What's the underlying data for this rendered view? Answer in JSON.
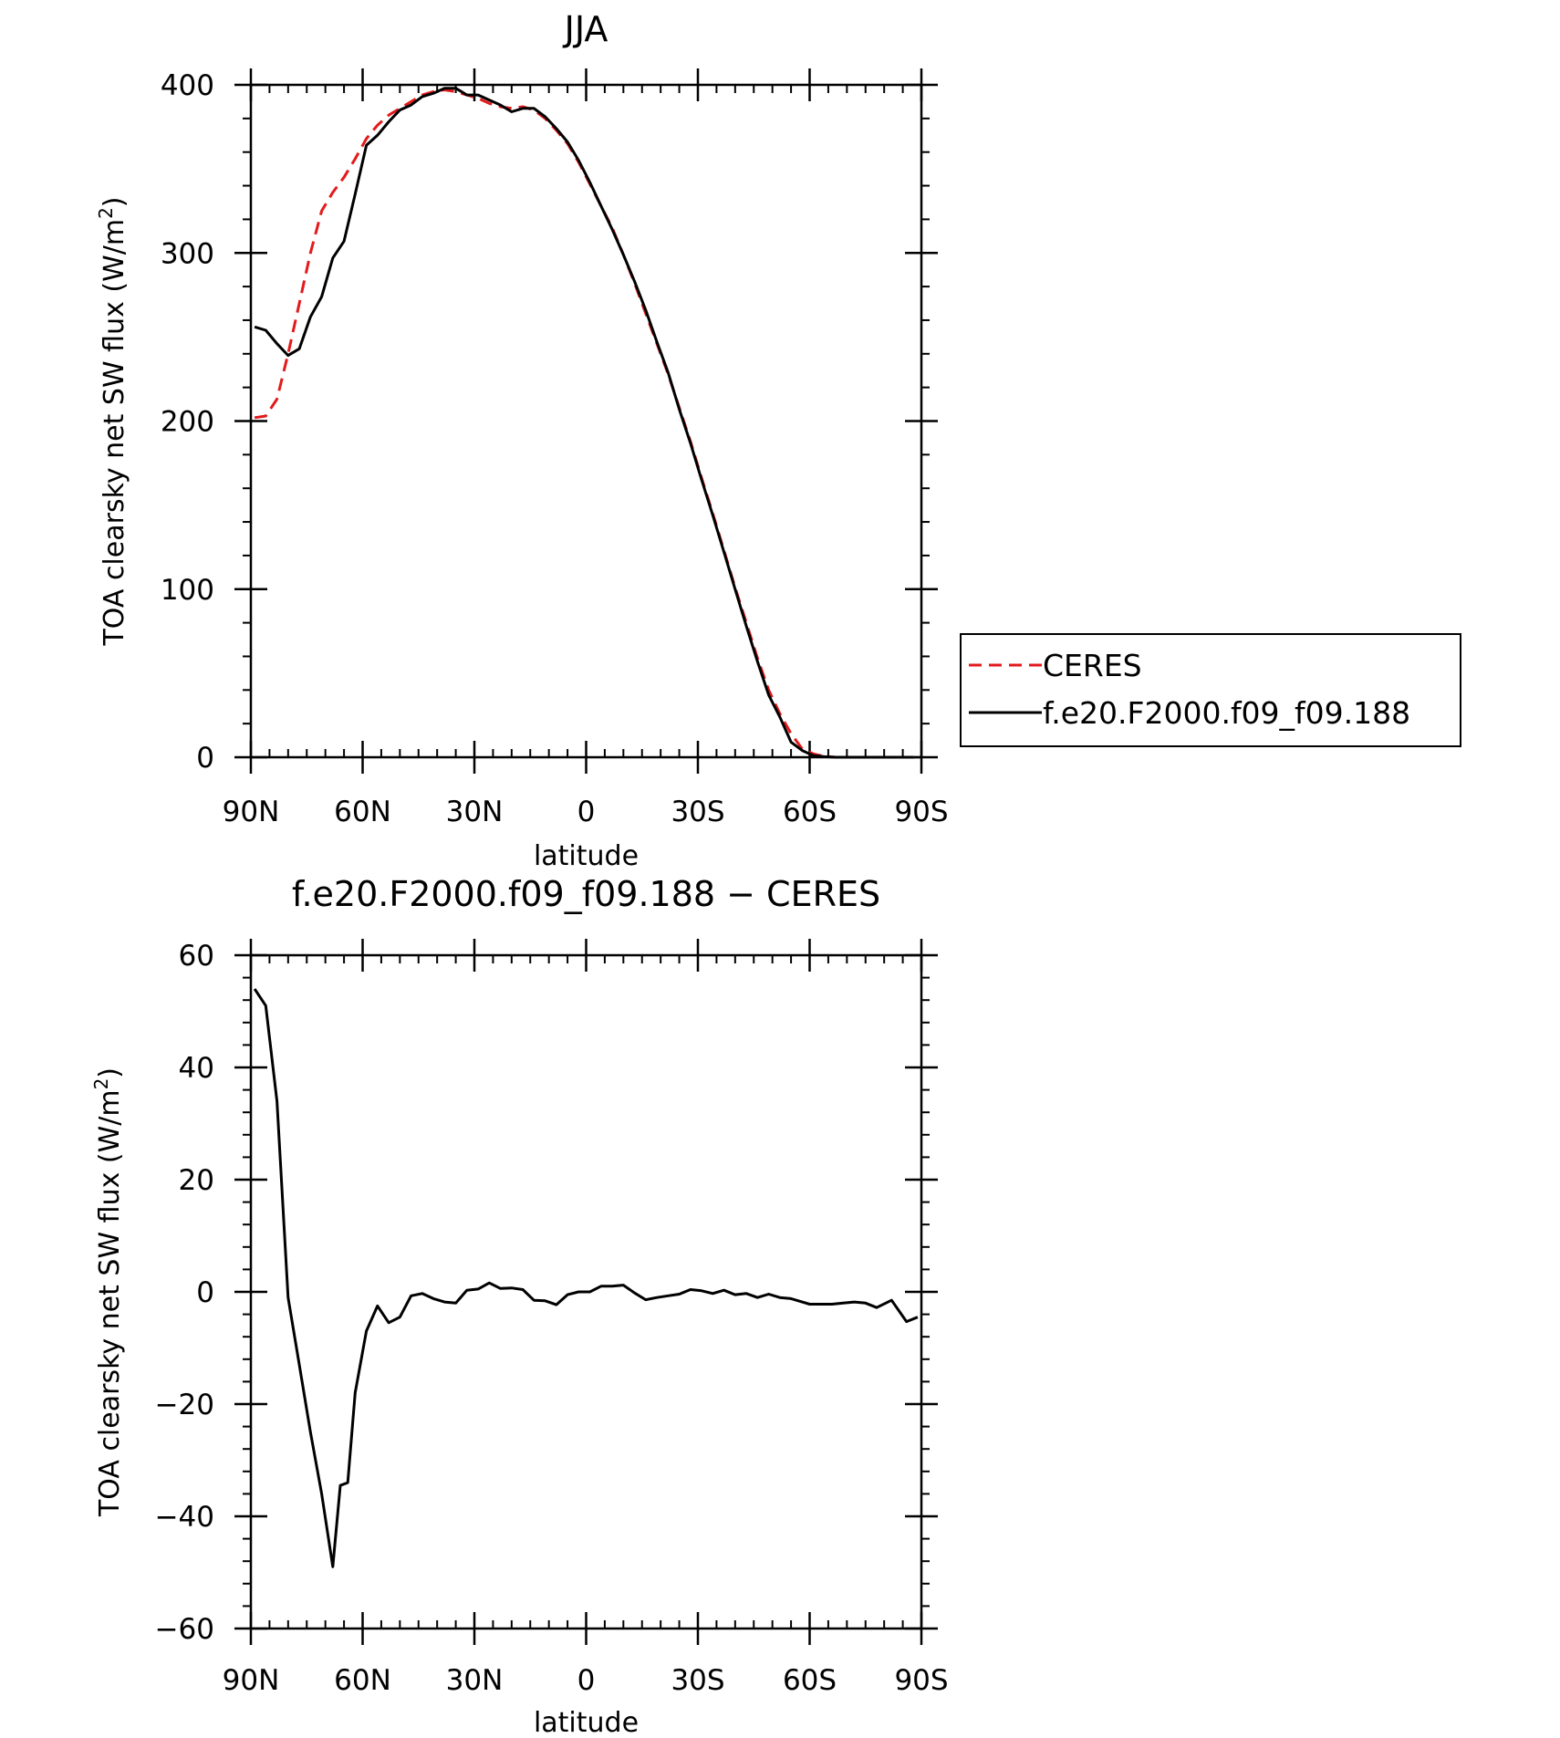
{
  "chart_data": [
    {
      "type": "line",
      "title": "JJA",
      "xlabel": "latitude",
      "ylabel": "TOA clearsky net SW flux (W/m",
      "ylabel_superscript": "2",
      "ylabel_close": ")",
      "xlim": [
        90,
        -90
      ],
      "ylim": [
        0,
        400
      ],
      "x_ticks": [
        {
          "value": 90,
          "label": "90N"
        },
        {
          "value": 60,
          "label": "60N"
        },
        {
          "value": 30,
          "label": "30N"
        },
        {
          "value": 0,
          "label": "0"
        },
        {
          "value": -30,
          "label": "30S"
        },
        {
          "value": -60,
          "label": "60S"
        },
        {
          "value": -90,
          "label": "90S"
        }
      ],
      "y_ticks": [
        {
          "value": 0,
          "label": "0"
        },
        {
          "value": 100,
          "label": "100"
        },
        {
          "value": 200,
          "label": "200"
        },
        {
          "value": 300,
          "label": "300"
        },
        {
          "value": 400,
          "label": "400"
        }
      ],
      "grid": false,
      "legend": "right",
      "series": [
        {
          "name": "CERES",
          "color": "#e31a1c",
          "dash": "dashed",
          "x": [
            89,
            86,
            83,
            80,
            77,
            74,
            71,
            68,
            65,
            62,
            59,
            56,
            53,
            50,
            47,
            44,
            41,
            38,
            35,
            32,
            29,
            26,
            23,
            20,
            17,
            14,
            11,
            8,
            5,
            2,
            -1,
            -4,
            -7,
            -10,
            -13,
            -16,
            -19,
            -22,
            -25,
            -28,
            -31,
            -34,
            -37,
            -40,
            -43,
            -46,
            -49,
            -52,
            -55,
            -58,
            -61,
            -64,
            -67,
            -70,
            -73,
            -76,
            -79,
            -82,
            -85,
            -88
          ],
          "y": [
            202,
            203,
            213,
            240,
            270,
            300,
            325,
            336,
            345,
            356,
            368,
            376,
            382,
            386,
            390,
            394,
            396,
            397,
            396,
            394,
            392,
            389,
            387,
            386,
            387,
            385,
            380,
            373,
            365,
            354,
            341,
            328,
            315,
            299,
            282,
            264,
            246,
            228,
            208,
            188,
            166,
            145,
            123,
            101,
            80,
            59,
            40,
            26,
            14,
            5,
            2,
            0.5,
            0,
            0,
            0,
            0,
            0,
            0,
            0,
            0
          ]
        },
        {
          "name": "f.e20.F2000.f09_f09.188",
          "color": "#000000",
          "dash": "solid",
          "x": [
            89,
            86,
            83,
            80,
            77,
            74,
            71,
            68,
            65,
            62,
            59,
            56,
            53,
            50,
            47,
            44,
            41,
            38,
            35,
            32,
            29,
            26,
            23,
            20,
            17,
            14,
            11,
            8,
            5,
            2,
            -1,
            -4,
            -7,
            -10,
            -13,
            -16,
            -19,
            -22,
            -25,
            -28,
            -31,
            -34,
            -37,
            -40,
            -43,
            -46,
            -49,
            -52,
            -55,
            -58,
            -61,
            -64,
            -67,
            -70,
            -73,
            -76,
            -79,
            -82,
            -85,
            -88
          ],
          "y": [
            256,
            254,
            246,
            239,
            243,
            262,
            274,
            297,
            307,
            335,
            364,
            370,
            378,
            385,
            388,
            393,
            395,
            398,
            398,
            394,
            394,
            391,
            388,
            384,
            386,
            386,
            381,
            374,
            366,
            355,
            342,
            328,
            314,
            299,
            283,
            266,
            247,
            229,
            207,
            187,
            165,
            144,
            122,
            100,
            78,
            57,
            37,
            24,
            9,
            4,
            1,
            0.3,
            0,
            0,
            0,
            0,
            0,
            0,
            0,
            0
          ]
        }
      ]
    },
    {
      "type": "line",
      "title": "f.e20.F2000.f09_f09.188 − CERES",
      "xlabel": "latitude",
      "ylabel": "TOA clearsky net SW flux (W/m",
      "ylabel_superscript": "2",
      "ylabel_close": ")",
      "xlim": [
        90,
        -90
      ],
      "ylim": [
        -60,
        60
      ],
      "x_ticks": [
        {
          "value": 90,
          "label": "90N"
        },
        {
          "value": 60,
          "label": "60N"
        },
        {
          "value": 30,
          "label": "30N"
        },
        {
          "value": 0,
          "label": "0"
        },
        {
          "value": -30,
          "label": "30S"
        },
        {
          "value": -60,
          "label": "60S"
        },
        {
          "value": -90,
          "label": "90S"
        }
      ],
      "y_ticks": [
        {
          "value": -60,
          "label": "−60"
        },
        {
          "value": -40,
          "label": "−40"
        },
        {
          "value": -20,
          "label": "−20"
        },
        {
          "value": 0,
          "label": "0"
        },
        {
          "value": 20,
          "label": "20"
        },
        {
          "value": 40,
          "label": "40"
        },
        {
          "value": 60,
          "label": "60"
        }
      ],
      "grid": false,
      "series": [
        {
          "name": "",
          "color": "#000000",
          "dash": "solid",
          "x": [
            89,
            86,
            83,
            80,
            77,
            74,
            71,
            68,
            66,
            64,
            62,
            59,
            56,
            53,
            50,
            47,
            44,
            41,
            38,
            35,
            32,
            29,
            26,
            23,
            20,
            17,
            14,
            11,
            8,
            5,
            2,
            -1,
            -4,
            -7,
            -10,
            -13,
            -16,
            -19,
            -22,
            -25,
            -28,
            -31,
            -34,
            -37,
            -40,
            -43,
            -46,
            -49,
            -52,
            -55,
            -58,
            -60,
            -63,
            -66,
            -69,
            -72,
            -75,
            -78,
            -82,
            -86,
            -89
          ],
          "y": [
            54,
            51,
            34,
            -1,
            -13,
            -25,
            -36,
            -49,
            -34.5,
            -34,
            -18,
            -7,
            -2.5,
            -5.5,
            -4.5,
            -0.7,
            -0.3,
            -1.2,
            -1.8,
            -2,
            0.3,
            0.5,
            1.6,
            0.6,
            0.7,
            0.4,
            -1.5,
            -1.6,
            -2.3,
            -0.5,
            0,
            0,
            1,
            1,
            1.2,
            -0.2,
            -1.4,
            -1,
            -0.7,
            -0.4,
            0.4,
            0.2,
            -0.3,
            0.3,
            -0.5,
            -0.3,
            -1,
            -0.4,
            -1,
            -1.2,
            -1.8,
            -2.2,
            -2.2,
            -2.2,
            -2,
            -1.8,
            -2,
            -2.8,
            -1.5,
            -5.3,
            -4.5
          ]
        }
      ]
    }
  ],
  "legend_items": [
    {
      "name": "CERES",
      "color": "#e31a1c",
      "dash": "dashed"
    },
    {
      "name": "f.e20.F2000.f09_f09.188",
      "color": "#000000",
      "dash": "solid"
    }
  ]
}
